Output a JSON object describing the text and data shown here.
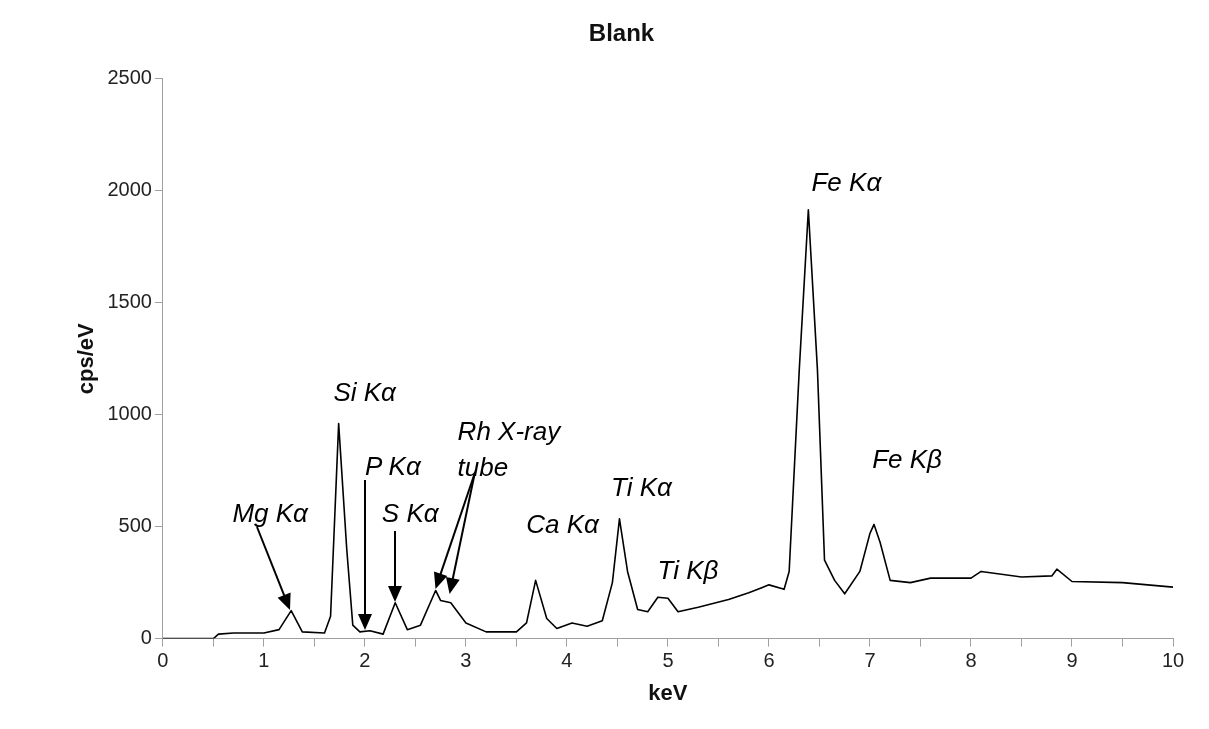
{
  "chart_data": {
    "type": "line",
    "title": "Blank",
    "xlabel": "keV",
    "ylabel": "cps/eV",
    "xlim": [
      0,
      10
    ],
    "xticks": [
      0,
      {
        "value": 0.5,
        "label": null
      },
      1,
      {
        "value": 1.5,
        "label": null
      },
      2,
      {
        "value": 2.5,
        "label": null
      },
      3,
      {
        "value": 3.5,
        "label": null
      },
      4,
      {
        "value": 4.5,
        "label": null
      },
      5,
      {
        "value": 5.5,
        "label": null
      },
      6,
      {
        "value": 6.5,
        "label": null
      },
      7,
      {
        "value": 7.5,
        "label": null
      },
      8,
      {
        "value": 8.5,
        "label": null
      },
      9,
      {
        "value": 9.5,
        "label": null
      },
      10
    ],
    "ylim": [
      0,
      2500
    ],
    "yticks": [
      0,
      500,
      1000,
      1500,
      2000,
      2500
    ],
    "grid": false,
    "legend": false,
    "marker": "none",
    "line_style": "solid",
    "series": [
      {
        "color": "#000000",
        "x": [
          0,
          0.5,
          0.55,
          0.7,
          1.0,
          1.15,
          1.27,
          1.38,
          1.6,
          1.66,
          1.74,
          1.82,
          1.88,
          1.95,
          2.05,
          2.18,
          2.3,
          2.42,
          2.55,
          2.7,
          2.75,
          2.85,
          3.0,
          3.2,
          3.5,
          3.6,
          3.69,
          3.8,
          3.9,
          4.05,
          4.2,
          4.35,
          4.45,
          4.52,
          4.6,
          4.7,
          4.8,
          4.9,
          5.0,
          5.1,
          5.3,
          5.6,
          5.8,
          6.0,
          6.15,
          6.2,
          6.3,
          6.39,
          6.48,
          6.55,
          6.65,
          6.75,
          6.9,
          7.0,
          7.04,
          7.1,
          7.2,
          7.4,
          7.6,
          8.0,
          8.1,
          8.5,
          8.8,
          8.85,
          9.0,
          9.5,
          10
        ],
        "values": [
          0,
          0,
          20,
          25,
          25,
          40,
          125,
          30,
          25,
          100,
          960,
          400,
          60,
          30,
          35,
          20,
          160,
          40,
          60,
          215,
          170,
          160,
          70,
          30,
          30,
          70,
          260,
          90,
          45,
          70,
          55,
          80,
          250,
          535,
          300,
          130,
          120,
          185,
          180,
          120,
          140,
          175,
          205,
          240,
          220,
          300,
          1200,
          1915,
          1200,
          350,
          260,
          200,
          300,
          470,
          510,
          430,
          260,
          250,
          270,
          270,
          300,
          275,
          280,
          310,
          255,
          250,
          230
        ]
      }
    ],
    "annotations": [
      "Mg Kα",
      {
        "text": "Si Kα",
        "x": 1.74,
        "y": 960
      },
      "P Kα",
      {
        "text": "S Kα",
        "x": 2.3,
        "y": 160
      },
      "Rh X-ray tube",
      {
        "text": "Ca Kα",
        "x": 3.69,
        "y": 260
      },
      {
        "text": "Ti Kα",
        "x": 4.52,
        "y": 535
      },
      {
        "text": "Ti Kβ",
        "x": 4.95,
        "y": 185
      },
      {
        "text": "Fe Kα",
        "x": 6.39,
        "y": 1915
      },
      {
        "text": "Fe Kβ",
        "x": 7.04,
        "y": 510
      }
    ]
  }
}
